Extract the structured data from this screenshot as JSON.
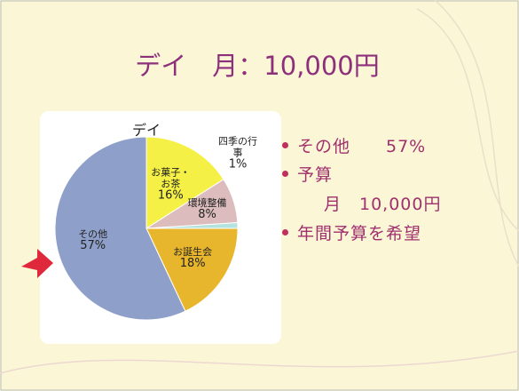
{
  "slide": {
    "title": "デイ　月：10,000円",
    "bullets": [
      "その他　　57%",
      "予算",
      "月　10,000円",
      "年間予算を希望"
    ]
  },
  "chart_data": {
    "type": "pie",
    "title": "デイ",
    "categories": [
      "お菓子・お茶",
      "環境整備",
      "四季の行事",
      "お誕生会",
      "その他"
    ],
    "values": [
      16,
      8,
      1,
      18,
      57
    ],
    "value_labels": [
      "16%",
      "8%",
      "1%",
      "18%",
      "57%"
    ],
    "colors": [
      "#f4f046",
      "#dcbcbc",
      "#b4e2de",
      "#e8b62c",
      "#8e9fc9"
    ]
  }
}
